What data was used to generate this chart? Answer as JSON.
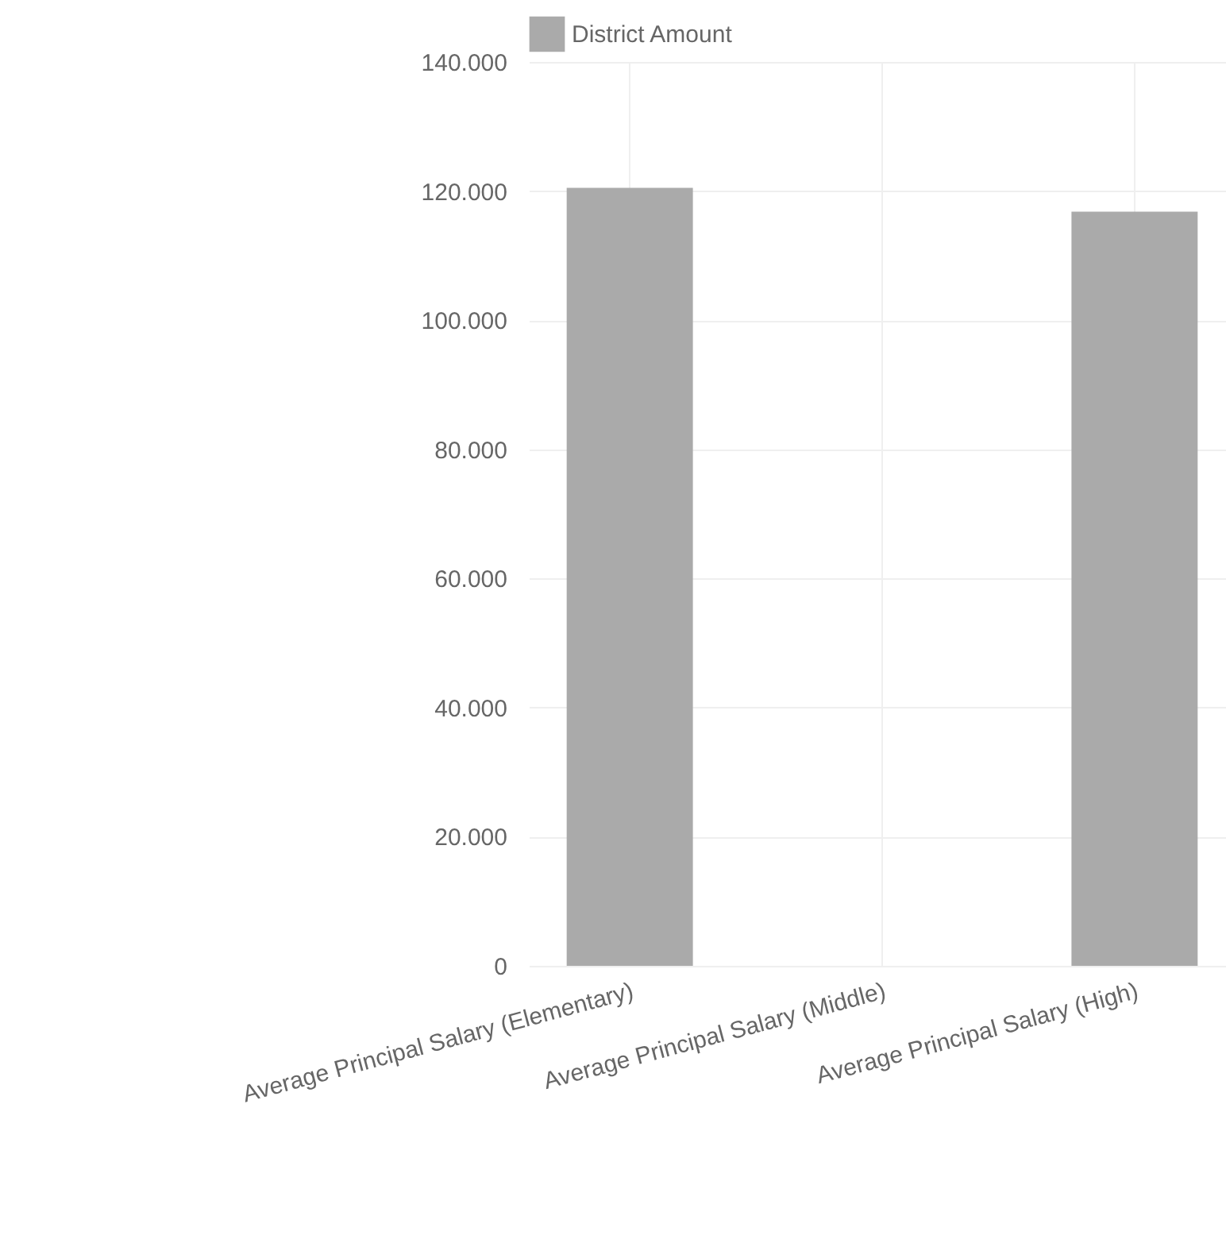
{
  "chart_data": {
    "type": "bar",
    "categories": [
      "Average Principal Salary (Elementary)",
      "Average Principal Salary (Middle)",
      "Average Principal Salary (High)"
    ],
    "series": [
      {
        "name": "District Amount",
        "color": "#aaaaaa",
        "values": [
          120500,
          null,
          116800
        ]
      }
    ],
    "ylim": [
      0,
      140000
    ],
    "yticks": [
      {
        "value": 0,
        "label": "0"
      },
      {
        "value": 20000,
        "label": "20.000"
      },
      {
        "value": 40000,
        "label": "40.000"
      },
      {
        "value": 60000,
        "label": "60.000"
      },
      {
        "value": 80000,
        "label": "80.000"
      },
      {
        "value": 100000,
        "label": "100.000"
      },
      {
        "value": 120000,
        "label": "120.000"
      },
      {
        "value": 140000,
        "label": "140.000"
      }
    ],
    "grid": true,
    "legend": "top"
  }
}
